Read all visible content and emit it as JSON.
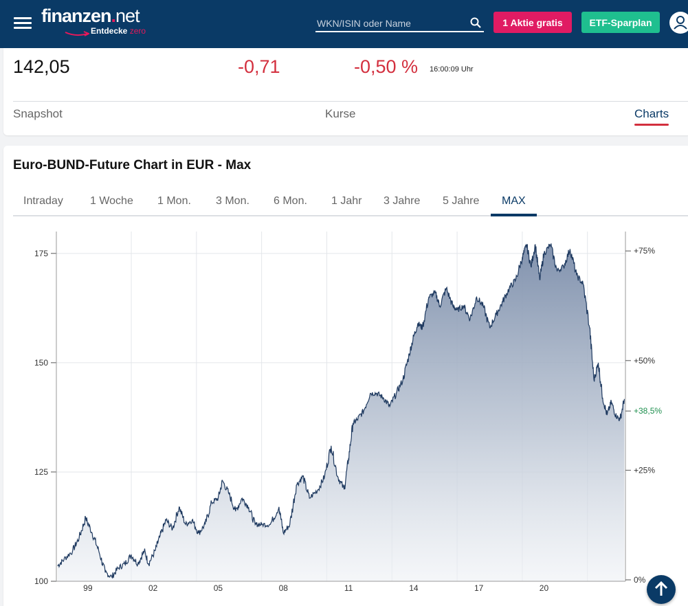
{
  "header": {
    "logo_main": "finanzen",
    "logo_dot": ".",
    "logo_net": "net",
    "logo_tagline": "Entdecke",
    "logo_tagline_zero": "zero",
    "search_placeholder": "WKN/ISIN oder Name",
    "btn_aktie": "1 Aktie gratis",
    "btn_etf": "ETF-Sparplan",
    "colors": {
      "bar": "#0a3a66",
      "aktie": "#e01b63",
      "etf": "#1fbf8f"
    },
    "icons": [
      "menu-icon",
      "search-icon",
      "user-icon"
    ]
  },
  "quote": {
    "price": "142,05",
    "change_abs": "-0,71",
    "change_pct": "-0,50 %",
    "time": "16:00:09 Uhr",
    "negative_color": "#d32f3e"
  },
  "nav_tabs": [
    {
      "label": "Snapshot",
      "active": false
    },
    {
      "label": "Kurse",
      "active": false
    },
    {
      "label": "Charts",
      "active": true
    }
  ],
  "chart_section": {
    "title": "Euro-BUND-Future Chart in EUR - Max",
    "ranges": [
      "Intraday",
      "1 Woche",
      "1 Mon.",
      "3 Mon.",
      "6 Mon.",
      "1 Jahr",
      "3 Jahre",
      "5 Jahre",
      "MAX"
    ],
    "active_range": "MAX"
  },
  "chart_data": {
    "type": "area",
    "x_tick_labels": [
      "99",
      "02",
      "05",
      "08",
      "11",
      "14",
      "17",
      "20"
    ],
    "y_tick_labels": [
      "100",
      "125",
      "150",
      "175"
    ],
    "y_right_tick_labels": [
      "+75%",
      "+50%",
      "+38,5%",
      "+25%",
      "0%"
    ],
    "highlight_right_label": "+38,5%",
    "ylim": [
      100,
      178
    ],
    "grid": true,
    "line_color": "#1f3a60",
    "series": [
      {
        "x": [
          1997.6,
          1997.9,
          1998.3,
          1998.6,
          1998.9,
          1999.2,
          1999.5,
          1999.8,
          2000.1,
          2000.4,
          2000.7,
          2001.0,
          2001.3,
          2001.6,
          2001.8,
          2002.1,
          2002.3,
          2002.6,
          2002.9,
          2003.2,
          2003.5,
          2003.8,
          2004.1,
          2004.4,
          2004.7,
          2005.0,
          2005.2,
          2005.5,
          2005.8,
          2006.1,
          2006.4,
          2006.7,
          2007.0,
          2007.4,
          2007.8,
          2008.0,
          2008.3,
          2008.6,
          2008.9,
          2009.2,
          2009.6,
          2009.9,
          2010.2,
          2010.5,
          2010.8,
          2011.0,
          2011.2,
          2011.4,
          2011.7,
          2012.0,
          2012.3,
          2012.6,
          2012.9,
          2013.2,
          2013.5,
          2013.8,
          2014.0,
          2014.2,
          2014.4,
          2014.7,
          2015.0,
          2015.2,
          2015.5,
          2015.8,
          2016.0,
          2016.3,
          2016.6,
          2016.9,
          2017.2,
          2017.5,
          2017.8,
          2018.1,
          2018.4,
          2018.7,
          2019.0,
          2019.2,
          2019.4,
          2019.6,
          2019.8,
          2020.0,
          2020.3,
          2020.6,
          2020.9,
          2021.2,
          2021.5,
          2021.8,
          2022.1,
          2022.3,
          2022.5,
          2022.7,
          2022.9,
          2023.1,
          2023.3,
          2023.5,
          2023.7
        ],
        "values": [
          103.5,
          105,
          107,
          110,
          114.5,
          111,
          107,
          102,
          101,
          103,
          104,
          106,
          104,
          107,
          104,
          107,
          110,
          114,
          112,
          117,
          113,
          114,
          111,
          113,
          118,
          119,
          123,
          120,
          116,
          119,
          117,
          113,
          113,
          113,
          117,
          111,
          113,
          122,
          124,
          119,
          121,
          124,
          131,
          124,
          121,
          128,
          136,
          137,
          139,
          143,
          143,
          142,
          140,
          143,
          146,
          152,
          156,
          159,
          158,
          165,
          166,
          163,
          167,
          163,
          162,
          163,
          160,
          165,
          163,
          158,
          161,
          164,
          167,
          169,
          174,
          177,
          172,
          177,
          169,
          175,
          177,
          171,
          172,
          176,
          170,
          168,
          158,
          146,
          150,
          142,
          138,
          141,
          138,
          137,
          141.7
        ]
      }
    ]
  }
}
